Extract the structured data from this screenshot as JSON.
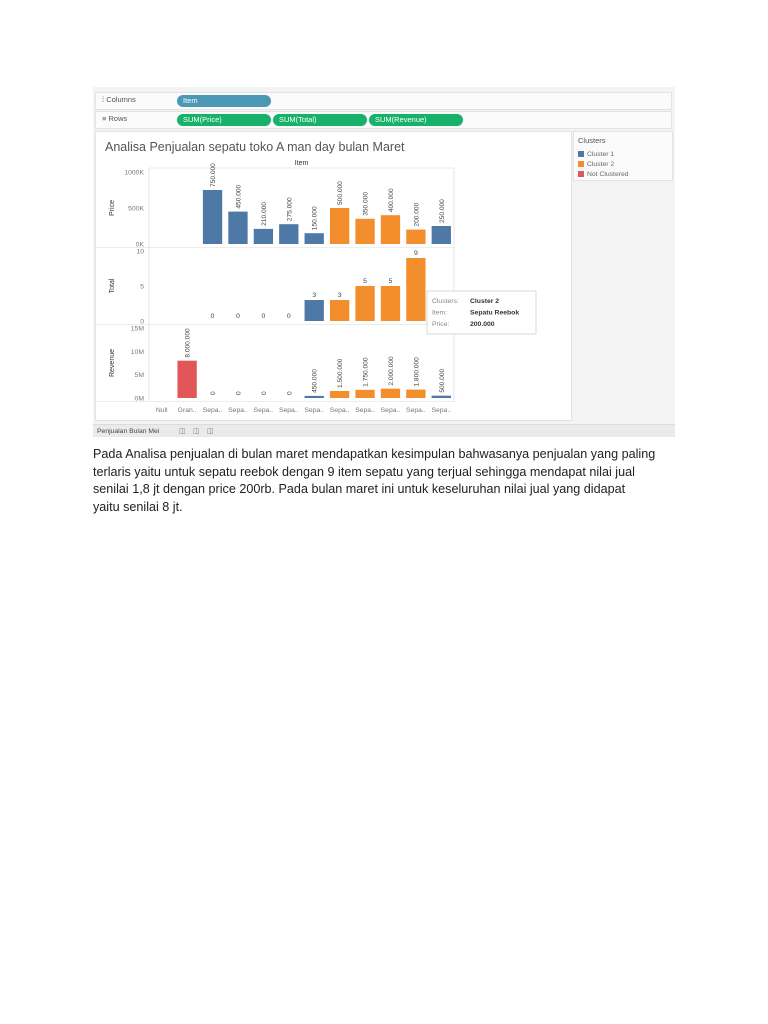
{
  "screenshot": {
    "columns_shelf": {
      "label": "Columns",
      "icon": "columns-icon",
      "pills": [
        "Item"
      ]
    },
    "rows_shelf": {
      "label": "Rows",
      "icon": "rows-icon",
      "pills": [
        "SUM(Price)",
        "SUM(Total)",
        "SUM(Revenue)"
      ]
    },
    "legend": {
      "title": "Clusters",
      "items": [
        {
          "label": "Cluster 1",
          "color": "#4e79a7"
        },
        {
          "label": "Cluster 2",
          "color": "#f28e2b"
        },
        {
          "label": "Not Clustered",
          "color": "#e15759"
        }
      ]
    },
    "tabs": {
      "sheet": "Penjualan Bulan Mei",
      "icons": [
        "new-worksheet-icon",
        "new-dashboard-icon",
        "new-story-icon"
      ]
    },
    "tooltip": [
      {
        "key": "Clusters:",
        "value": "Cluster 2"
      },
      {
        "key": "Item:",
        "value": "Sepatu Reebok"
      },
      {
        "key": "Price:",
        "value": "200.000"
      }
    ]
  },
  "chart_data": {
    "type": "bar",
    "title": "Analisa Penjualan sepatu toko A man day bulan Maret",
    "xlabel": "Item",
    "categories": [
      "Null",
      "Gran..",
      "Sepa..",
      "Sepa..",
      "Sepa..",
      "Sepa..",
      "Sepa..",
      "Sepa..",
      "Sepa..",
      "Sepa..",
      "Sepa..",
      "Sepa.."
    ],
    "cluster": [
      null,
      "Not Clustered",
      "Cluster 1",
      "Cluster 1",
      "Cluster 1",
      "Cluster 1",
      "Cluster 1",
      "Cluster 2",
      "Cluster 2",
      "Cluster 2",
      "Cluster 2",
      "Cluster 1"
    ],
    "panes": [
      {
        "ylabel": "Price",
        "ylim": [
          0,
          1000000
        ],
        "ticks": [
          0,
          500000,
          1000000
        ],
        "tick_labels": [
          "0K",
          "500K",
          "1000K"
        ],
        "values": [
          null,
          null,
          750000,
          450000,
          210000,
          275000,
          150000,
          500000,
          350000,
          400000,
          200000,
          250000
        ],
        "labels": [
          "",
          "",
          "750.000",
          "450.000",
          "210.000",
          "275.000",
          "150.000",
          "500.000",
          "350.000",
          "400.000",
          "200.000",
          "250.000"
        ],
        "label_rotated": true
      },
      {
        "ylabel": "Total",
        "ylim": [
          0,
          10
        ],
        "ticks": [
          0,
          5,
          10
        ],
        "tick_labels": [
          "0",
          "5",
          "10"
        ],
        "values": [
          null,
          null,
          0,
          0,
          0,
          0,
          3,
          3,
          5,
          5,
          9,
          2
        ],
        "labels": [
          "",
          "",
          "0",
          "0",
          "0",
          "0",
          "3",
          "3",
          "5",
          "5",
          "9",
          "2"
        ],
        "label_rotated": false
      },
      {
        "ylabel": "Revenue",
        "ylim": [
          0,
          15000000
        ],
        "ticks": [
          0,
          5000000,
          10000000,
          15000000
        ],
        "tick_labels": [
          "0M",
          "5M",
          "10M",
          "15M"
        ],
        "values": [
          null,
          8000000,
          0,
          0,
          0,
          0,
          450000,
          1500000,
          1750000,
          2000000,
          1800000,
          500000
        ],
        "labels": [
          "",
          "8.000.000",
          "0",
          "0",
          "0",
          "0",
          "450.000",
          "1.500.000",
          "1.750.000",
          "2.000.000",
          "1.800.000",
          "500.000"
        ],
        "label_rotated": true
      }
    ],
    "grid": false,
    "legend_position": "right"
  },
  "paragraph": {
    "lines": [
      "Pada Analisa penjualan di bulan maret mendapatkan kesimpulan bahwasanya penjualan yang paling",
      "terlaris yaitu untuk sepatu reebok dengan 9 item sepatu yang terjual sehingga mendapat nilai jual",
      "senilai 1,8 jt dengan price 200rb. Pada bulan maret ini untuk keseluruhan nilai jual yang didapat",
      "yaitu senilai 8 jt."
    ]
  }
}
